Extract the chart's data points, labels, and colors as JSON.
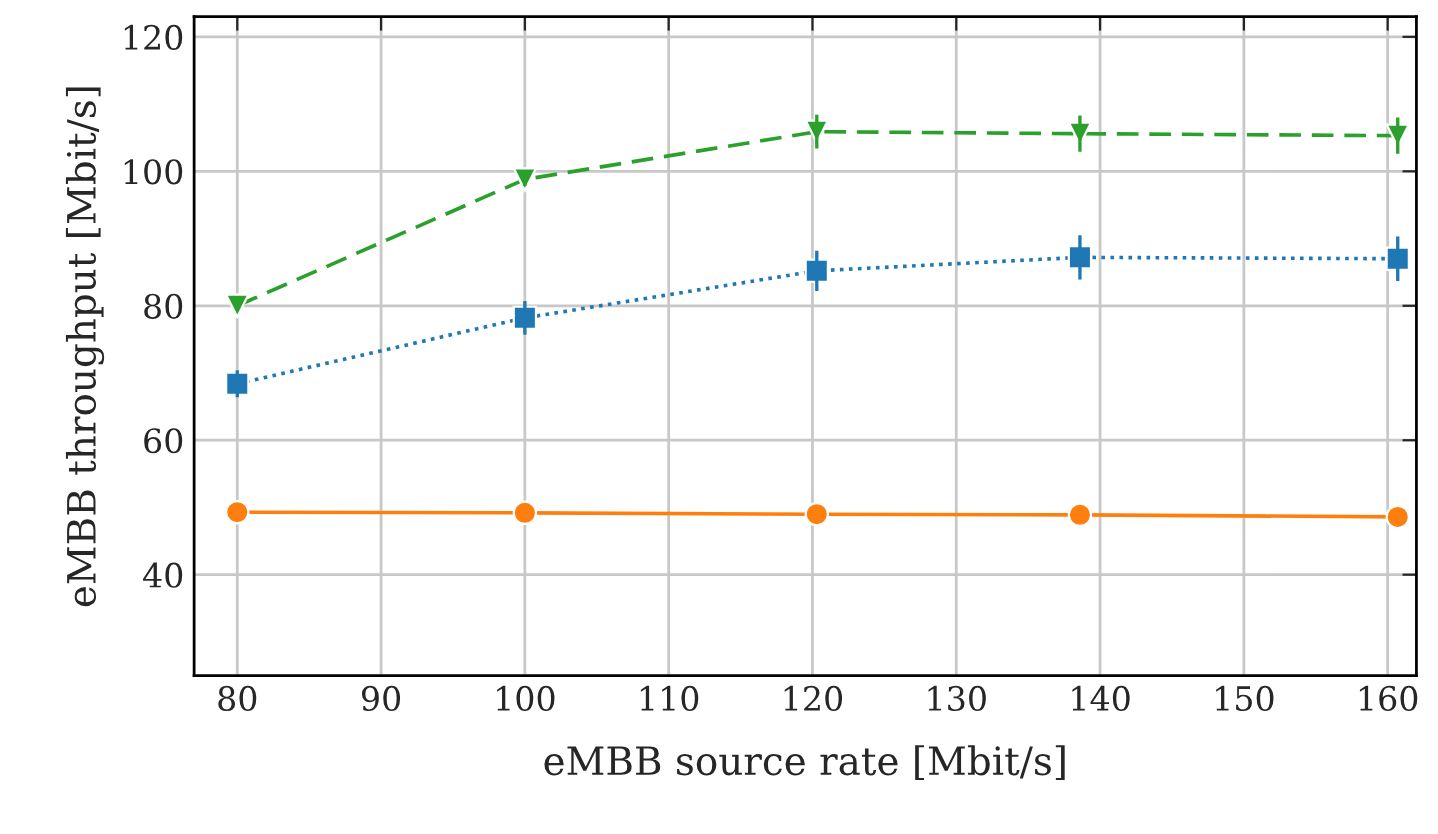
{
  "chart_data": {
    "type": "line",
    "xlabel": "eMBB source rate [Mbit/s]",
    "ylabel": "eMBB throughput [Mbit/s]",
    "xlim": [
      77,
      162
    ],
    "xticks": [
      80,
      90,
      100,
      110,
      120,
      130,
      140,
      150,
      160
    ],
    "ylim": [
      25,
      123
    ],
    "yticks": [
      40,
      60,
      80,
      100,
      120
    ],
    "grid": true,
    "series": [
      {
        "color": "#2ca02c",
        "marker": "triangle",
        "line_style": "dashed",
        "x": [
          80,
          100,
          120.3,
          138.6,
          160.7
        ],
        "values": [
          80.0,
          98.8,
          105.9,
          105.6,
          105.3
        ],
        "errors": [
          0.5,
          1,
          2.5,
          2.7,
          2.7
        ]
      },
      {
        "color": "#1f77b4",
        "marker": "square",
        "line_style": "dotted",
        "x": [
          80,
          100,
          120.3,
          138.6,
          160.7
        ],
        "values": [
          68.4,
          78.2,
          85.2,
          87.2,
          87.0
        ],
        "errors": [
          2,
          2.5,
          3,
          3.3,
          3.3
        ]
      },
      {
        "color": "#ff7f0e",
        "marker": "circle",
        "line_style": "solid",
        "x": [
          80,
          100,
          120.3,
          138.6,
          160.7
        ],
        "values": [
          49.3,
          49.2,
          49.0,
          48.9,
          48.6
        ]
      }
    ]
  }
}
